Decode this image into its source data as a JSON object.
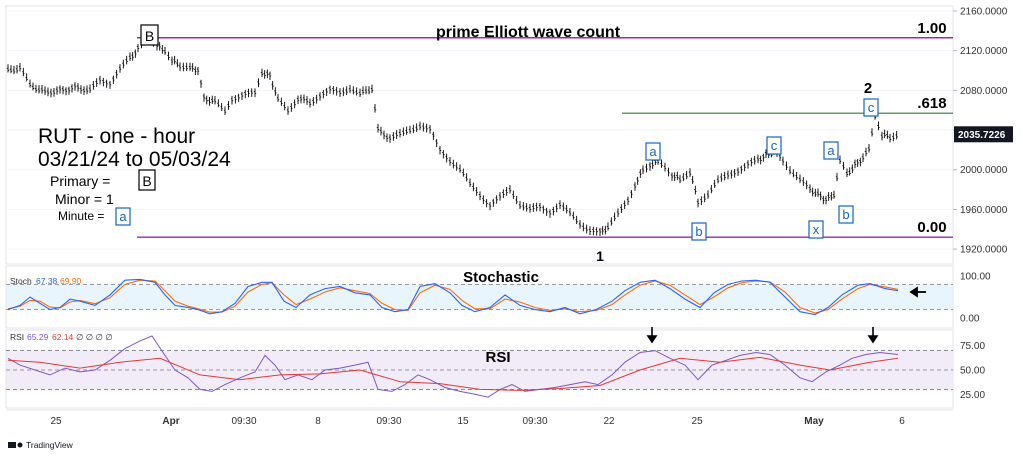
{
  "chart_data": {
    "type": "ohlc",
    "title": "prime Elliott wave count",
    "symbol_line": "RUT - one - hour",
    "date_line": "03/21/24 to 05/03/24",
    "legend": {
      "primary_label": "Primary =",
      "primary_value": "B",
      "minor_label": "Minor = 1",
      "minute_label": "Minute =",
      "minute_value": "a"
    },
    "price_axis": {
      "ticks": [
        "2160.0000",
        "2120.0000",
        "2080.0000",
        "2040.0000",
        "2000.0000",
        "1960.0000",
        "1920.0000"
      ],
      "last_price": "2035.7226",
      "range": [
        1905,
        2165
      ]
    },
    "time_axis": [
      "25",
      "Apr",
      "09:30",
      "8",
      "09:30",
      "15",
      "09:30",
      "22",
      "25",
      "May",
      "6"
    ],
    "fib_levels": [
      {
        "label": "1.00",
        "value": 2133
      },
      {
        "label": ".618",
        "value": 2057
      },
      {
        "label": "0.00",
        "value": 1932
      }
    ],
    "wave_labels": {
      "B": "B",
      "one": "1",
      "two": "2",
      "a1": "a",
      "b1": "b",
      "c1": "c",
      "x": "x",
      "a2": "a",
      "b2": "b",
      "c2": "c"
    },
    "price_path": [
      [
        8,
        2100
      ],
      [
        20,
        2102
      ],
      [
        30,
        2085
      ],
      [
        45,
        2078
      ],
      [
        60,
        2080
      ],
      [
        75,
        2083
      ],
      [
        90,
        2080
      ],
      [
        100,
        2090
      ],
      [
        110,
        2088
      ],
      [
        120,
        2102
      ],
      [
        130,
        2112
      ],
      [
        138,
        2122
      ],
      [
        145,
        2130
      ],
      [
        150,
        2133
      ],
      [
        157,
        2125
      ],
      [
        165,
        2120
      ],
      [
        172,
        2110
      ],
      [
        180,
        2105
      ],
      [
        190,
        2102
      ],
      [
        198,
        2101
      ],
      [
        204,
        2072
      ],
      [
        215,
        2068
      ],
      [
        225,
        2060
      ],
      [
        232,
        2072
      ],
      [
        242,
        2075
      ],
      [
        255,
        2078
      ],
      [
        262,
        2098
      ],
      [
        270,
        2095
      ],
      [
        278,
        2070
      ],
      [
        288,
        2060
      ],
      [
        298,
        2072
      ],
      [
        310,
        2068
      ],
      [
        320,
        2075
      ],
      [
        330,
        2080
      ],
      [
        340,
        2078
      ],
      [
        350,
        2082
      ],
      [
        360,
        2076
      ],
      [
        372,
        2082
      ],
      [
        378,
        2040
      ],
      [
        390,
        2032
      ],
      [
        400,
        2035
      ],
      [
        410,
        2040
      ],
      [
        420,
        2045
      ],
      [
        430,
        2040
      ],
      [
        440,
        2020
      ],
      [
        450,
        2010
      ],
      [
        460,
        2000
      ],
      [
        470,
        1985
      ],
      [
        480,
        1975
      ],
      [
        490,
        1965
      ],
      [
        500,
        1972
      ],
      [
        510,
        1980
      ],
      [
        520,
        1965
      ],
      [
        530,
        1960
      ],
      [
        540,
        1962
      ],
      [
        550,
        1958
      ],
      [
        560,
        1965
      ],
      [
        570,
        1955
      ],
      [
        580,
        1945
      ],
      [
        590,
        1940
      ],
      [
        600,
        1937
      ],
      [
        608,
        1942
      ],
      [
        618,
        1955
      ],
      [
        628,
        1970
      ],
      [
        635,
        1985
      ],
      [
        643,
        2000
      ],
      [
        650,
        2005
      ],
      [
        658,
        2008
      ],
      [
        665,
        2003
      ],
      [
        672,
        1995
      ],
      [
        680,
        1990
      ],
      [
        690,
        1998
      ],
      [
        698,
        1968
      ],
      [
        708,
        1975
      ],
      [
        718,
        1988
      ],
      [
        728,
        1995
      ],
      [
        738,
        2000
      ],
      [
        748,
        2005
      ],
      [
        758,
        2010
      ],
      [
        766,
        2015
      ],
      [
        774,
        2018
      ],
      [
        783,
        2010
      ],
      [
        790,
        2000
      ],
      [
        800,
        1990
      ],
      [
        810,
        1980
      ],
      [
        818,
        1975
      ],
      [
        826,
        1970
      ],
      [
        834,
        1975
      ],
      [
        840,
        2008
      ],
      [
        847,
        1995
      ],
      [
        855,
        2005
      ],
      [
        863,
        2012
      ],
      [
        869,
        2020
      ],
      [
        875,
        2055
      ],
      [
        882,
        2035
      ],
      [
        890,
        2033
      ],
      [
        900,
        2036
      ]
    ],
    "stochastic": {
      "title": "Stochastic",
      "label": "Stoch",
      "k": "67.38",
      "d": "69.90",
      "ticks": [
        "100.00",
        "0.00"
      ],
      "levels": [
        80,
        20
      ],
      "k_path": [
        [
          8,
          20
        ],
        [
          20,
          30
        ],
        [
          30,
          50
        ],
        [
          40,
          35
        ],
        [
          50,
          20
        ],
        [
          60,
          25
        ],
        [
          70,
          45
        ],
        [
          80,
          40
        ],
        [
          95,
          30
        ],
        [
          110,
          55
        ],
        [
          125,
          90
        ],
        [
          140,
          92
        ],
        [
          155,
          85
        ],
        [
          165,
          55
        ],
        [
          175,
          30
        ],
        [
          188,
          25
        ],
        [
          198,
          20
        ],
        [
          210,
          10
        ],
        [
          222,
          15
        ],
        [
          235,
          35
        ],
        [
          248,
          75
        ],
        [
          262,
          85
        ],
        [
          272,
          85
        ],
        [
          284,
          40
        ],
        [
          296,
          25
        ],
        [
          310,
          55
        ],
        [
          325,
          70
        ],
        [
          340,
          75
        ],
        [
          355,
          60
        ],
        [
          370,
          55
        ],
        [
          382,
          25
        ],
        [
          395,
          15
        ],
        [
          408,
          20
        ],
        [
          420,
          75
        ],
        [
          435,
          82
        ],
        [
          450,
          60
        ],
        [
          462,
          30
        ],
        [
          475,
          15
        ],
        [
          490,
          25
        ],
        [
          505,
          55
        ],
        [
          520,
          30
        ],
        [
          535,
          20
        ],
        [
          550,
          15
        ],
        [
          565,
          25
        ],
        [
          580,
          10
        ],
        [
          596,
          20
        ],
        [
          612,
          40
        ],
        [
          625,
          65
        ],
        [
          640,
          85
        ],
        [
          655,
          90
        ],
        [
          670,
          70
        ],
        [
          685,
          45
        ],
        [
          700,
          25
        ],
        [
          714,
          60
        ],
        [
          728,
          80
        ],
        [
          742,
          88
        ],
        [
          756,
          90
        ],
        [
          770,
          85
        ],
        [
          785,
          50
        ],
        [
          800,
          15
        ],
        [
          815,
          8
        ],
        [
          828,
          25
        ],
        [
          842,
          55
        ],
        [
          858,
          78
        ],
        [
          870,
          82
        ],
        [
          885,
          70
        ],
        [
          898,
          65
        ]
      ],
      "d_path": [
        [
          8,
          22
        ],
        [
          20,
          28
        ],
        [
          30,
          42
        ],
        [
          40,
          40
        ],
        [
          50,
          26
        ],
        [
          60,
          24
        ],
        [
          70,
          38
        ],
        [
          80,
          42
        ],
        [
          95,
          34
        ],
        [
          110,
          48
        ],
        [
          125,
          80
        ],
        [
          140,
          90
        ],
        [
          155,
          88
        ],
        [
          165,
          65
        ],
        [
          175,
          40
        ],
        [
          188,
          28
        ],
        [
          198,
          22
        ],
        [
          210,
          14
        ],
        [
          222,
          14
        ],
        [
          235,
          28
        ],
        [
          248,
          62
        ],
        [
          262,
          80
        ],
        [
          272,
          84
        ],
        [
          284,
          55
        ],
        [
          296,
          32
        ],
        [
          310,
          45
        ],
        [
          325,
          62
        ],
        [
          340,
          72
        ],
        [
          355,
          65
        ],
        [
          370,
          58
        ],
        [
          382,
          35
        ],
        [
          395,
          20
        ],
        [
          408,
          18
        ],
        [
          420,
          60
        ],
        [
          435,
          78
        ],
        [
          450,
          68
        ],
        [
          462,
          42
        ],
        [
          475,
          22
        ],
        [
          490,
          22
        ],
        [
          505,
          45
        ],
        [
          520,
          38
        ],
        [
          535,
          25
        ],
        [
          550,
          18
        ],
        [
          565,
          22
        ],
        [
          580,
          15
        ],
        [
          596,
          18
        ],
        [
          612,
          32
        ],
        [
          625,
          55
        ],
        [
          640,
          78
        ],
        [
          655,
          88
        ],
        [
          670,
          78
        ],
        [
          685,
          55
        ],
        [
          700,
          32
        ],
        [
          714,
          50
        ],
        [
          728,
          72
        ],
        [
          742,
          84
        ],
        [
          756,
          88
        ],
        [
          770,
          86
        ],
        [
          785,
          62
        ],
        [
          800,
          25
        ],
        [
          815,
          12
        ],
        [
          828,
          20
        ],
        [
          842,
          45
        ],
        [
          858,
          70
        ],
        [
          870,
          80
        ],
        [
          885,
          74
        ],
        [
          898,
          68
        ]
      ]
    },
    "rsi": {
      "title": "RSI",
      "label": "RSI",
      "v1": "65.29",
      "v2": "62.14",
      "extra": "∅ ∅ ∅ ∅",
      "ticks": [
        "75.00",
        "50.00",
        "25.00"
      ],
      "levels": [
        70,
        50,
        30
      ],
      "rsi_path": [
        [
          8,
          62
        ],
        [
          20,
          55
        ],
        [
          35,
          50
        ],
        [
          50,
          45
        ],
        [
          65,
          52
        ],
        [
          80,
          48
        ],
        [
          95,
          50
        ],
        [
          110,
          60
        ],
        [
          125,
          72
        ],
        [
          140,
          80
        ],
        [
          152,
          85
        ],
        [
          165,
          65
        ],
        [
          175,
          50
        ],
        [
          188,
          42
        ],
        [
          200,
          30
        ],
        [
          212,
          28
        ],
        [
          225,
          35
        ],
        [
          240,
          42
        ],
        [
          255,
          48
        ],
        [
          265,
          65
        ],
        [
          275,
          55
        ],
        [
          285,
          40
        ],
        [
          298,
          45
        ],
        [
          312,
          40
        ],
        [
          325,
          50
        ],
        [
          340,
          52
        ],
        [
          355,
          55
        ],
        [
          368,
          58
        ],
        [
          378,
          30
        ],
        [
          392,
          28
        ],
        [
          405,
          35
        ],
        [
          418,
          45
        ],
        [
          430,
          40
        ],
        [
          445,
          32
        ],
        [
          460,
          28
        ],
        [
          475,
          25
        ],
        [
          488,
          22
        ],
        [
          500,
          30
        ],
        [
          512,
          35
        ],
        [
          525,
          28
        ],
        [
          540,
          30
        ],
        [
          555,
          32
        ],
        [
          570,
          35
        ],
        [
          585,
          38
        ],
        [
          598,
          35
        ],
        [
          612,
          45
        ],
        [
          625,
          58
        ],
        [
          640,
          68
        ],
        [
          655,
          70
        ],
        [
          670,
          62
        ],
        [
          685,
          55
        ],
        [
          698,
          40
        ],
        [
          712,
          55
        ],
        [
          726,
          60
        ],
        [
          740,
          65
        ],
        [
          756,
          68
        ],
        [
          770,
          66
        ],
        [
          785,
          55
        ],
        [
          800,
          42
        ],
        [
          812,
          38
        ],
        [
          826,
          48
        ],
        [
          840,
          55
        ],
        [
          852,
          62
        ],
        [
          866,
          66
        ],
        [
          880,
          68
        ],
        [
          898,
          66
        ]
      ],
      "ma_path": [
        [
          8,
          60
        ],
        [
          40,
          58
        ],
        [
          80,
          52
        ],
        [
          120,
          58
        ],
        [
          160,
          62
        ],
        [
          200,
          45
        ],
        [
          240,
          40
        ],
        [
          280,
          45
        ],
        [
          320,
          46
        ],
        [
          360,
          50
        ],
        [
          400,
          38
        ],
        [
          440,
          36
        ],
        [
          480,
          30
        ],
        [
          520,
          29
        ],
        [
          560,
          31
        ],
        [
          600,
          34
        ],
        [
          640,
          50
        ],
        [
          680,
          62
        ],
        [
          720,
          58
        ],
        [
          760,
          63
        ],
        [
          800,
          55
        ],
        [
          830,
          50
        ],
        [
          870,
          58
        ],
        [
          898,
          62
        ]
      ]
    }
  }
}
